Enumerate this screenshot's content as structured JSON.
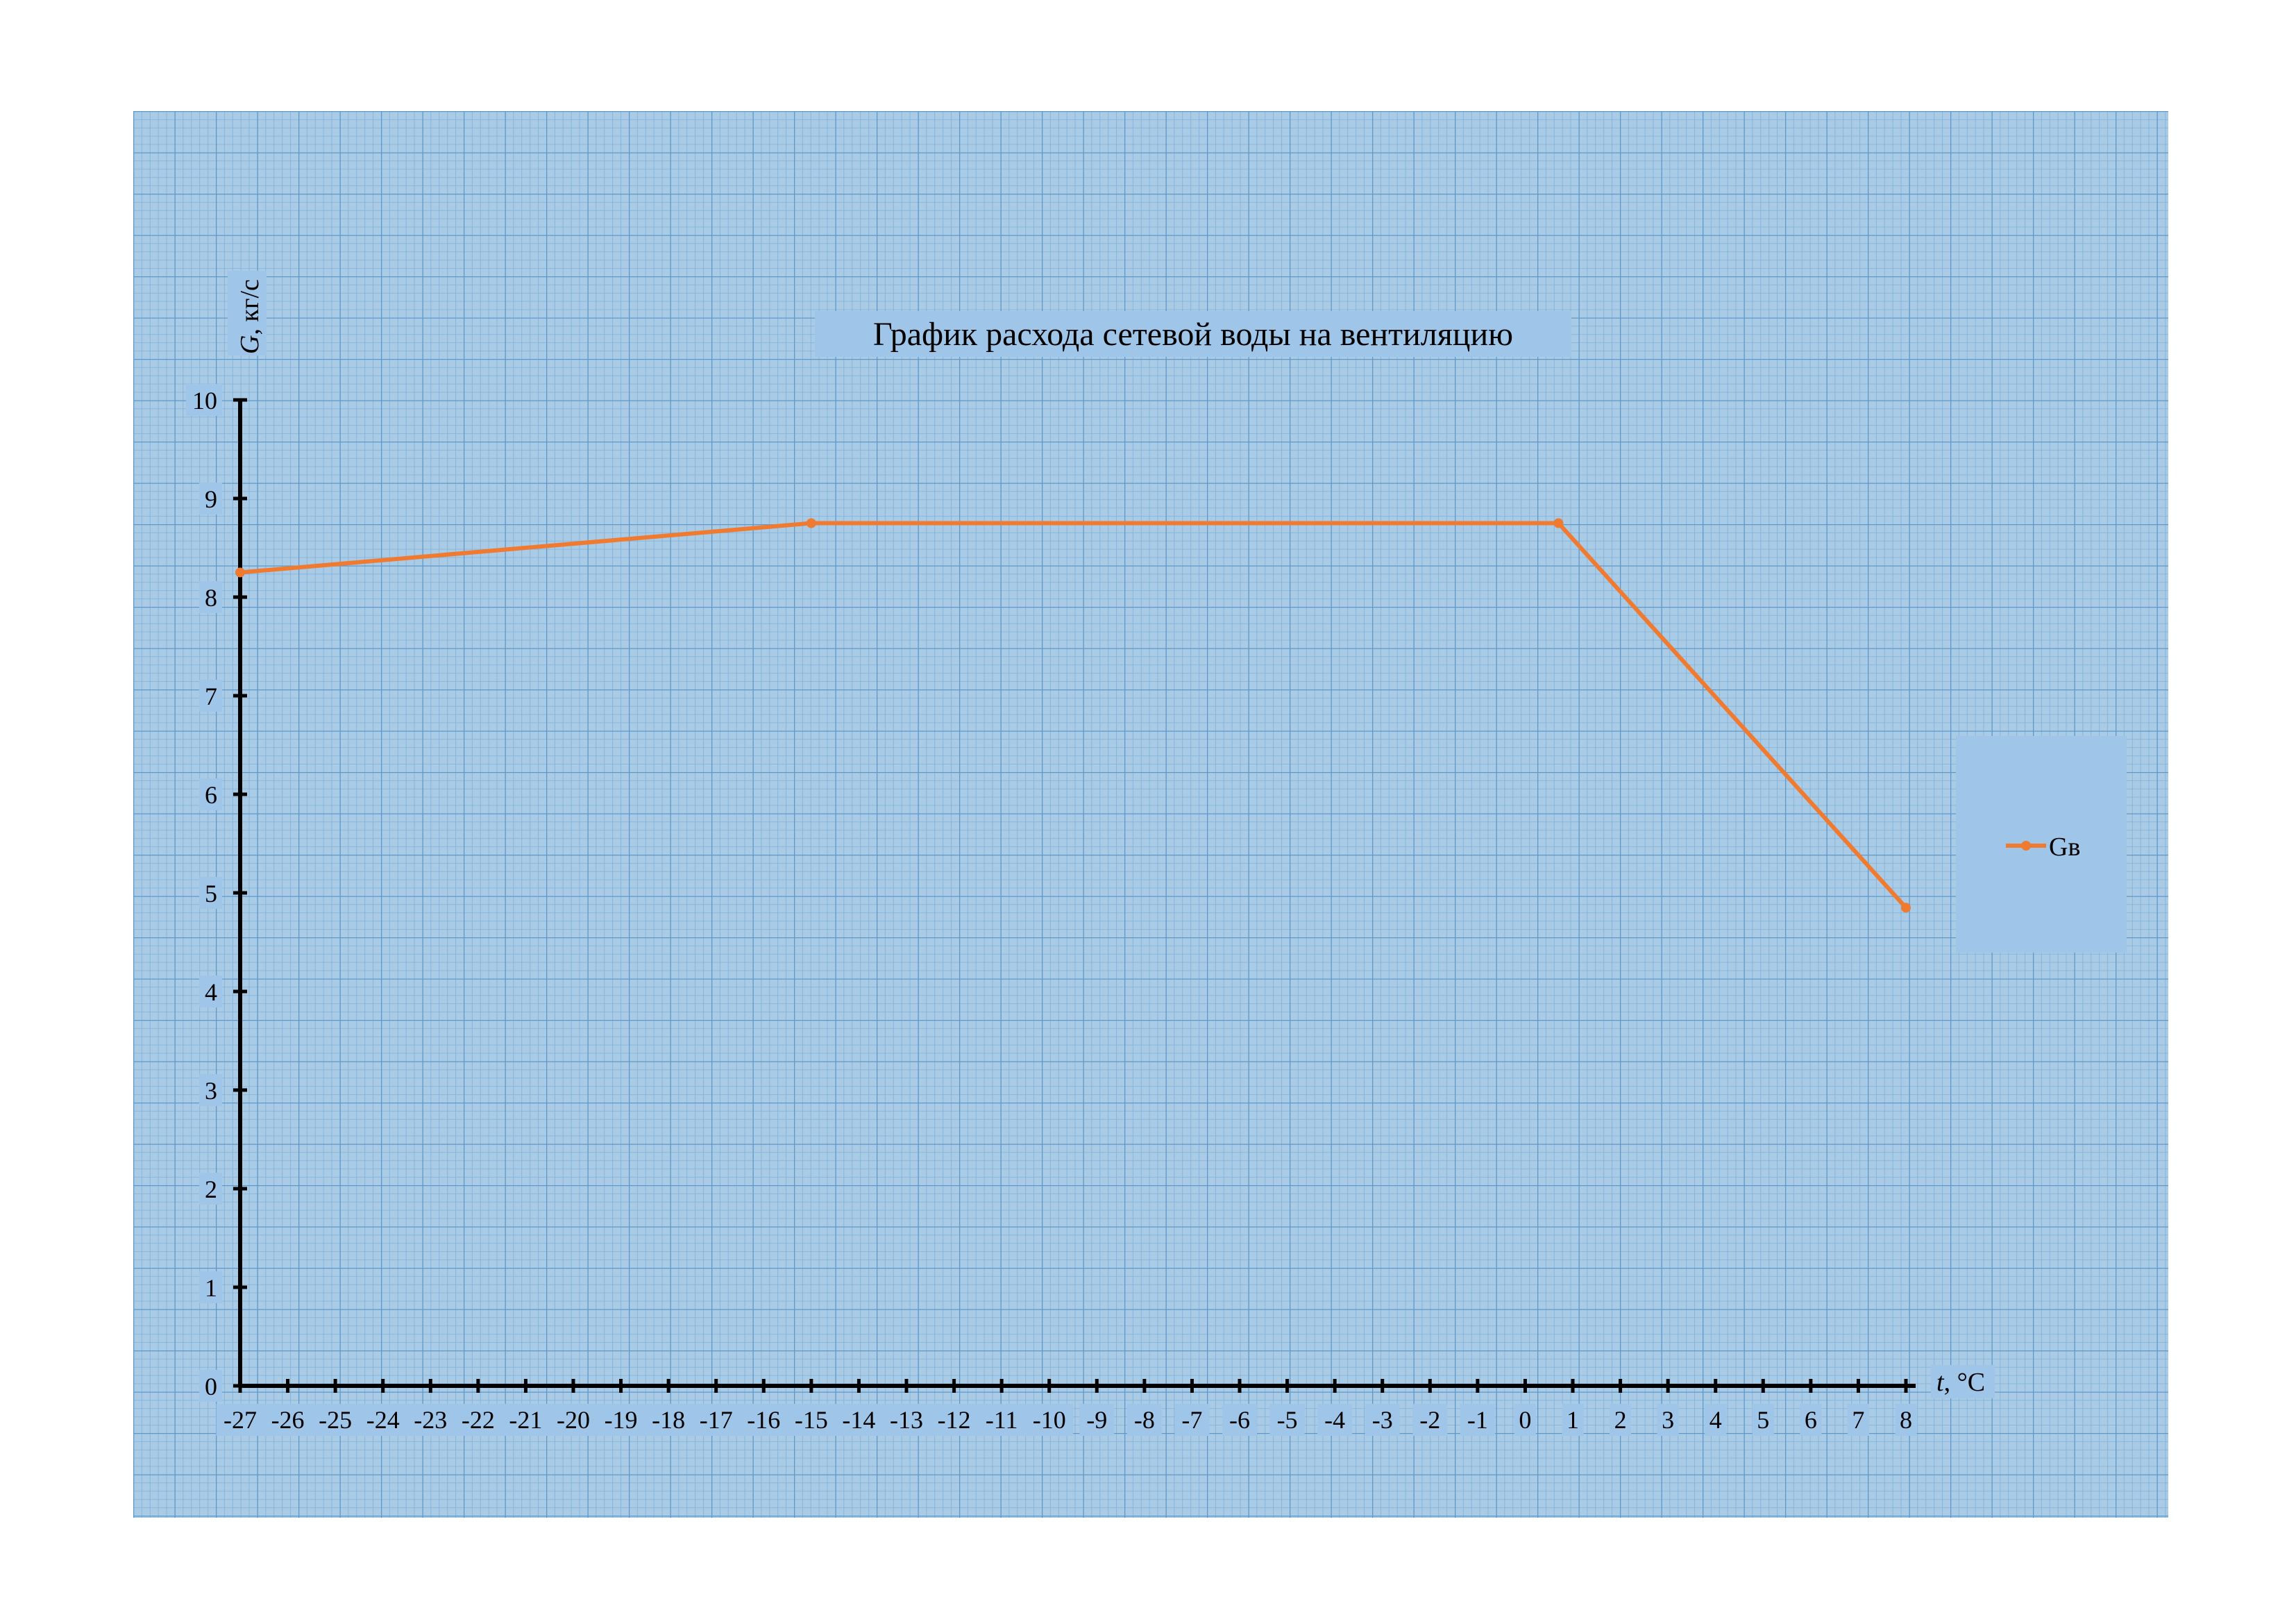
{
  "chart_data": {
    "type": "line",
    "title": "График расхода сетевой воды на вентиляцию",
    "ylabel_italic": "G",
    "ylabel_rest": ", кг/с",
    "xlabel_italic": "t",
    "xlabel_rest": ", °C",
    "xlim": [
      -27,
      8
    ],
    "ylim": [
      0,
      10
    ],
    "x_ticks": [
      -27,
      -26,
      -25,
      -24,
      -23,
      -22,
      -21,
      -20,
      -19,
      -18,
      -17,
      -16,
      -15,
      -14,
      -13,
      -12,
      -11,
      -10,
      -9,
      -8,
      -7,
      -6,
      -5,
      -4,
      -3,
      -2,
      -1,
      0,
      1,
      2,
      3,
      4,
      5,
      6,
      7,
      8
    ],
    "y_ticks": [
      0,
      1,
      2,
      3,
      4,
      5,
      6,
      7,
      8,
      9,
      10
    ],
    "series": [
      {
        "name": "Gв",
        "color": "#f07a30",
        "points": [
          {
            "x": -27,
            "y": 8.25
          },
          {
            "x": -15,
            "y": 8.75
          },
          {
            "x": 0.7,
            "y": 8.75
          },
          {
            "x": 8,
            "y": 4.85
          }
        ]
      }
    ],
    "legend_position": "right",
    "grid": true,
    "colors": {
      "grid_background": "#a9cbe6",
      "grid_minor": "#7fb0d8",
      "grid_major": "#5f98c8",
      "label_box": "#9fc5e8",
      "axis": "#000000"
    }
  }
}
